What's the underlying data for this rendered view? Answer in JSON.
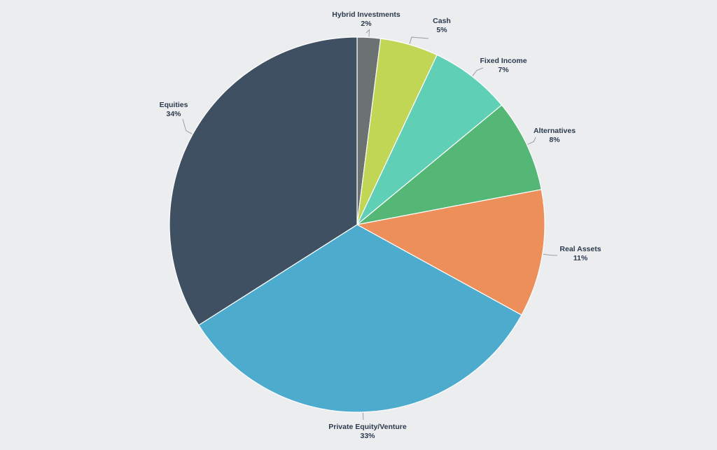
{
  "chart_data": {
    "type": "pie",
    "title": "",
    "start": "12 o'clock",
    "direction": "clockwise",
    "slices": [
      {
        "label": "Hybrid Investments",
        "pct_label": "2%",
        "value": 2,
        "color": "#6C7272"
      },
      {
        "label": "Cash",
        "pct_label": "5%",
        "value": 5,
        "color": "#C2D656"
      },
      {
        "label": "Fixed Income",
        "pct_label": "7%",
        "value": 7,
        "color": "#5FD0B5"
      },
      {
        "label": "Alternatives",
        "pct_label": "8%",
        "value": 8,
        "color": "#54B776"
      },
      {
        "label": "Real Assets",
        "pct_label": "11%",
        "value": 11,
        "color": "#EC8F5B"
      },
      {
        "label": "Private Equity/Venture",
        "pct_label": "33%",
        "value": 33,
        "color": "#4DABCE"
      },
      {
        "label": "Equities",
        "pct_label": "34%",
        "value": 34,
        "color": "#405063"
      }
    ]
  }
}
